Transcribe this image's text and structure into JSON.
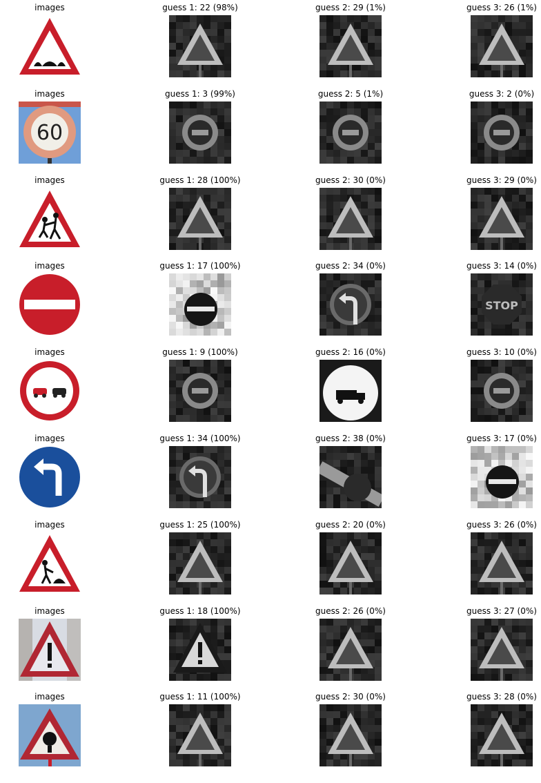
{
  "figure": {
    "rows": [
      {
        "cells": [
          {
            "title": "images",
            "kind": "sign",
            "icon": "bumpy-road-warning-sign-icon"
          },
          {
            "title": "guess 1: 22 (98%)",
            "kind": "gray",
            "icon": "grayscale-triangle-sign-icon"
          },
          {
            "title": "guess 2: 29 (1%)",
            "kind": "gray",
            "icon": "grayscale-triangle-sign-icon"
          },
          {
            "title": "guess 3: 26 (1%)",
            "kind": "gray",
            "icon": "grayscale-triangle-sign-icon"
          }
        ]
      },
      {
        "cells": [
          {
            "title": "images",
            "kind": "sign",
            "icon": "speed-limit-60-sign-icon",
            "text": "60"
          },
          {
            "title": "guess 1: 3 (99%)",
            "kind": "gray",
            "icon": "grayscale-round-sign-icon"
          },
          {
            "title": "guess 2: 5 (1%)",
            "kind": "gray",
            "icon": "grayscale-round-sign-icon"
          },
          {
            "title": "guess 3: 2 (0%)",
            "kind": "gray",
            "icon": "grayscale-round-sign-icon"
          }
        ]
      },
      {
        "cells": [
          {
            "title": "images",
            "kind": "sign",
            "icon": "children-crossing-warning-sign-icon"
          },
          {
            "title": "guess 1: 28 (100%)",
            "kind": "gray",
            "icon": "grayscale-triangle-sign-icon"
          },
          {
            "title": "guess 2: 30 (0%)",
            "kind": "gray",
            "icon": "grayscale-triangle-sign-icon"
          },
          {
            "title": "guess 3: 29 (0%)",
            "kind": "gray",
            "icon": "grayscale-triangle-sign-icon"
          }
        ]
      },
      {
        "cells": [
          {
            "title": "images",
            "kind": "sign",
            "icon": "no-entry-sign-icon"
          },
          {
            "title": "guess 1: 17 (100%)",
            "kind": "gray",
            "icon": "grayscale-no-entry-sign-icon"
          },
          {
            "title": "guess 2: 34 (0%)",
            "kind": "gray",
            "icon": "grayscale-turn-left-sign-icon"
          },
          {
            "title": "guess 3: 14 (0%)",
            "kind": "gray",
            "icon": "grayscale-stop-sign-icon",
            "text": "STOP"
          }
        ]
      },
      {
        "cells": [
          {
            "title": "images",
            "kind": "sign",
            "icon": "no-passing-sign-icon"
          },
          {
            "title": "guess 1: 9 (100%)",
            "kind": "gray",
            "icon": "grayscale-round-sign-icon"
          },
          {
            "title": "guess 2: 16 (0%)",
            "kind": "gray",
            "icon": "grayscale-no-trucks-sign-icon"
          },
          {
            "title": "guess 3: 10 (0%)",
            "kind": "gray",
            "icon": "grayscale-round-sign-icon"
          }
        ]
      },
      {
        "cells": [
          {
            "title": "images",
            "kind": "sign",
            "icon": "turn-left-ahead-sign-icon"
          },
          {
            "title": "guess 1: 34 (100%)",
            "kind": "gray",
            "icon": "grayscale-turn-left-sign-icon"
          },
          {
            "title": "guess 2: 38 (0%)",
            "kind": "gray",
            "icon": "grayscale-keep-right-sign-icon"
          },
          {
            "title": "guess 3: 17 (0%)",
            "kind": "gray",
            "icon": "grayscale-no-entry-sign-icon"
          }
        ]
      },
      {
        "cells": [
          {
            "title": "images",
            "kind": "sign",
            "icon": "road-work-warning-sign-icon"
          },
          {
            "title": "guess 1: 25 (100%)",
            "kind": "gray",
            "icon": "grayscale-triangle-sign-icon"
          },
          {
            "title": "guess 2: 20 (0%)",
            "kind": "gray",
            "icon": "grayscale-triangle-sign-icon"
          },
          {
            "title": "guess 3: 26 (0%)",
            "kind": "gray",
            "icon": "grayscale-triangle-sign-icon"
          }
        ]
      },
      {
        "cells": [
          {
            "title": "images",
            "kind": "sign",
            "icon": "general-caution-sign-icon"
          },
          {
            "title": "guess 1: 18 (100%)",
            "kind": "gray",
            "icon": "grayscale-caution-sign-icon"
          },
          {
            "title": "guess 2: 26 (0%)",
            "kind": "gray",
            "icon": "grayscale-triangle-sign-icon"
          },
          {
            "title": "guess 3: 27 (0%)",
            "kind": "gray",
            "icon": "grayscale-triangle-sign-icon"
          }
        ]
      },
      {
        "cells": [
          {
            "title": "images",
            "kind": "sign",
            "icon": "right-of-way-warning-sign-icon"
          },
          {
            "title": "guess 1: 11 (100%)",
            "kind": "gray",
            "icon": "grayscale-triangle-sign-icon"
          },
          {
            "title": "guess 2: 30 (0%)",
            "kind": "gray",
            "icon": "grayscale-triangle-sign-icon"
          },
          {
            "title": "guess 3: 28 (0%)",
            "kind": "gray",
            "icon": "grayscale-triangle-sign-icon"
          }
        ]
      }
    ]
  },
  "colors": {
    "background": "#ffffff",
    "sign_red": "#c81e2a",
    "sign_blue": "#1a4f9c",
    "title_text": "#000000"
  }
}
